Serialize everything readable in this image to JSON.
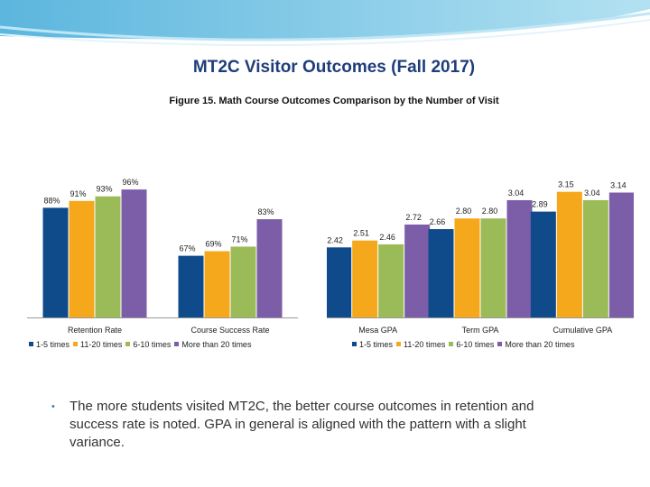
{
  "slide": {
    "title": "MT2C Visitor Outcomes (Fall 2017)",
    "figure_title": "Figure 15.  Math Course Outcomes Comparison by the Number of Visit",
    "bullet_symbol": "•",
    "bullet_text": "The more students visited MT2C, the better course outcomes in retention and success rate is noted. GPA in general is aligned with the pattern with a slight variance."
  },
  "legend": [
    {
      "name": "1-5 times",
      "color": "#0f4a8a"
    },
    {
      "name": "11-20 times",
      "color": "#f6a81c"
    },
    {
      "name": "6-10 times",
      "color": "#9bbb59"
    },
    {
      "name": "More than 20 times",
      "color": "#7b5ea7"
    }
  ],
  "chart_data": [
    {
      "type": "bar",
      "categories": [
        "Retention Rate",
        "Course Success Rate"
      ],
      "series": [
        {
          "name": "1-5 times",
          "values": [
            88,
            67
          ],
          "labels": [
            "88%",
            "67%"
          ]
        },
        {
          "name": "11-20 times",
          "values": [
            91,
            69
          ],
          "labels": [
            "91%",
            "69%"
          ]
        },
        {
          "name": "6-10 times",
          "values": [
            93,
            71
          ],
          "labels": [
            "93%",
            "71%"
          ]
        },
        {
          "name": "More than 20 times",
          "values": [
            96,
            83
          ],
          "labels": [
            "96%",
            "83%"
          ]
        }
      ],
      "ylim": [
        40,
        100
      ],
      "grid": false,
      "legend_position": "bottom"
    },
    {
      "type": "bar",
      "categories": [
        "Mesa GPA",
        "Term GPA",
        "Cumulative GPA"
      ],
      "series": [
        {
          "name": "1-5 times",
          "values": [
            2.42,
            2.66,
            2.89
          ],
          "labels": [
            "2.42",
            "2.66",
            "2.89"
          ]
        },
        {
          "name": "11-20 times",
          "values": [
            2.51,
            2.8,
            3.15
          ],
          "labels": [
            "2.51",
            "2.80",
            "3.15"
          ]
        },
        {
          "name": "6-10 times",
          "values": [
            2.46,
            2.8,
            3.04
          ],
          "labels": [
            "2.46",
            "2.80",
            "3.04"
          ]
        },
        {
          "name": "More than 20 times",
          "values": [
            2.72,
            3.04,
            3.14
          ],
          "labels": [
            "2.72",
            "3.04",
            "3.14"
          ]
        }
      ],
      "ylim": [
        1.5,
        3.3
      ],
      "grid": false,
      "legend_position": "bottom"
    }
  ]
}
